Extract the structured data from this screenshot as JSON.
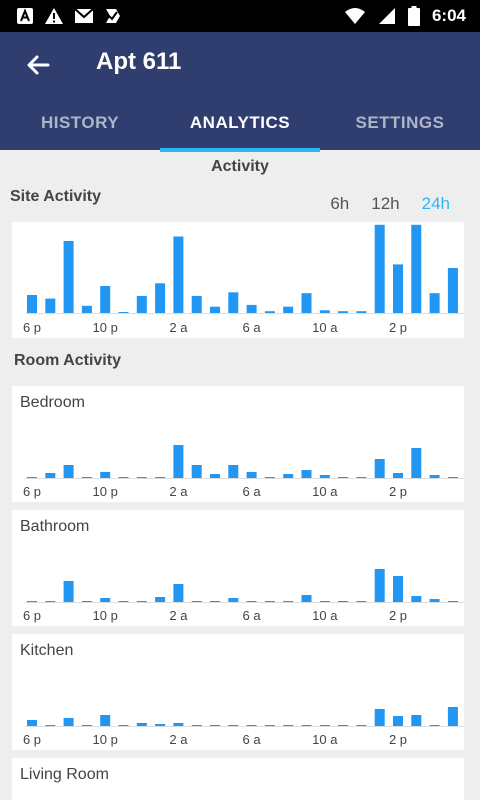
{
  "status_bar": {
    "time": "6:04"
  },
  "header": {
    "title": "Apt 611"
  },
  "tabs": [
    {
      "label": "HISTORY",
      "active": false
    },
    {
      "label": "ANALYTICS",
      "active": true
    },
    {
      "label": "SETTINGS",
      "active": false
    }
  ],
  "section_title": "Activity",
  "site_activity": {
    "label": "Site Activity",
    "ranges": [
      "6h",
      "12h",
      "24h"
    ],
    "selected_range": "24h"
  },
  "room_activity_label": "Room Activity",
  "colors": {
    "bar": "#2196f3",
    "accent": "#29b6f6",
    "appbar": "#2f3e6e"
  },
  "chart_data": [
    {
      "type": "bar",
      "title": "Site Activity",
      "categories": [
        "6 p",
        "7 p",
        "8 p",
        "9 p",
        "10 p",
        "11 p",
        "12 a",
        "1 a",
        "2 a",
        "3 a",
        "4 a",
        "5 a",
        "6 a",
        "7 a",
        "8 a",
        "9 a",
        "10 a",
        "11 a",
        "12 p",
        "1 p",
        "2 p",
        "3 p",
        "4 p",
        "5 p"
      ],
      "values": [
        20,
        16,
        80,
        8,
        30,
        0,
        19,
        33,
        85,
        19,
        7,
        23,
        9,
        2,
        7,
        22,
        3,
        2,
        2,
        98,
        54,
        98,
        22,
        50
      ],
      "tick_labels": [
        "6 p",
        "10 p",
        "2 a",
        "6 a",
        "10 a",
        "2 p"
      ],
      "ylim": [
        0,
        100
      ]
    },
    {
      "type": "bar",
      "title": "Bedroom",
      "categories": [
        "6 p",
        "7 p",
        "8 p",
        "9 p",
        "10 p",
        "11 p",
        "12 a",
        "1 a",
        "2 a",
        "3 a",
        "4 a",
        "5 a",
        "6 a",
        "7 a",
        "8 a",
        "9 a",
        "10 a",
        "11 a",
        "12 p",
        "1 p",
        "2 p",
        "3 p",
        "4 p",
        "5 p"
      ],
      "values": [
        1,
        5,
        13,
        1,
        6,
        1,
        1,
        1,
        33,
        13,
        4,
        13,
        6,
        1,
        4,
        8,
        3,
        1,
        1,
        19,
        5,
        30,
        3,
        1
      ],
      "tick_labels": [
        "6 p",
        "10 p",
        "2 a",
        "6 a",
        "10 a",
        "2 p"
      ],
      "ylim": [
        0,
        100
      ]
    },
    {
      "type": "bar",
      "title": "Bathroom",
      "categories": [
        "6 p",
        "7 p",
        "8 p",
        "9 p",
        "10 p",
        "11 p",
        "12 a",
        "1 a",
        "2 a",
        "3 a",
        "4 a",
        "5 a",
        "6 a",
        "7 a",
        "8 a",
        "9 a",
        "10 a",
        "11 a",
        "12 p",
        "1 p",
        "2 p",
        "3 p",
        "4 p",
        "5 p"
      ],
      "values": [
        1,
        1,
        21,
        1,
        4,
        1,
        1,
        5,
        18,
        1,
        1,
        4,
        1,
        1,
        1,
        7,
        1,
        1,
        1,
        33,
        26,
        6,
        3,
        0
      ],
      "tick_labels": [
        "6 p",
        "10 p",
        "2 a",
        "6 a",
        "10 a",
        "2 p"
      ],
      "ylim": [
        0,
        100
      ]
    },
    {
      "type": "bar",
      "title": "Kitchen",
      "categories": [
        "6 p",
        "7 p",
        "8 p",
        "9 p",
        "10 p",
        "11 p",
        "12 a",
        "1 a",
        "2 a",
        "3 a",
        "4 a",
        "5 a",
        "6 a",
        "7 a",
        "8 a",
        "9 a",
        "10 a",
        "11 a",
        "12 p",
        "1 p",
        "2 p",
        "3 p",
        "4 p",
        "5 p"
      ],
      "values": [
        6,
        1,
        8,
        1,
        11,
        1,
        3,
        2,
        3,
        1,
        1,
        1,
        1,
        1,
        1,
        1,
        1,
        1,
        1,
        17,
        10,
        11,
        1,
        19
      ],
      "tick_labels": [
        "6 p",
        "10 p",
        "2 a",
        "6 a",
        "10 a",
        "2 p"
      ],
      "ylim": [
        0,
        100
      ]
    }
  ],
  "living_room_label": "Living Room"
}
